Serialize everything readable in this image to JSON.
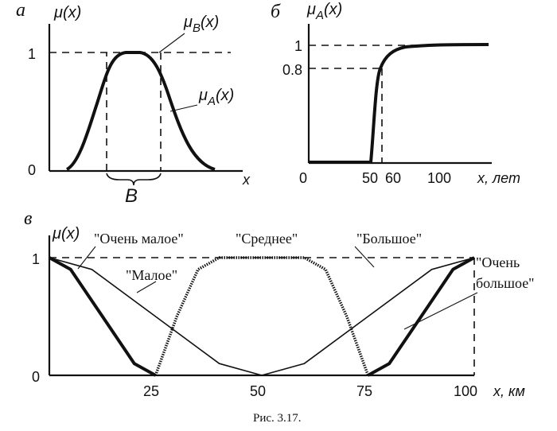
{
  "chart_data": [
    {
      "panel": "а",
      "type": "line",
      "ylabel": "μ(x)",
      "xlabel": "x",
      "y_ticks": [
        "0",
        "1"
      ],
      "ylim": [
        0,
        1
      ],
      "series": [
        {
          "name": "μB(x)",
          "x": [
            0.18,
            0.18,
            0.59,
            0.59
          ],
          "y": [
            0,
            1,
            1,
            0
          ],
          "style": "dashed"
        },
        {
          "name": "μA(x)",
          "x": [
            0.09,
            0.22,
            0.38,
            0.51,
            0.66,
            0.88
          ],
          "y": [
            0,
            0.5,
            1,
            1,
            0.5,
            0
          ],
          "style": "solid"
        }
      ],
      "interval_label": "B",
      "curve_labels": {
        "B": "μB(x)",
        "A": "μA(x)"
      }
    },
    {
      "panel": "б",
      "type": "line",
      "ylabel": "μA(x)",
      "xlabel": "x, лет",
      "x_ticks": [
        {
          "value": 0,
          "label": "0"
        },
        {
          "value": 50,
          "label": "50"
        },
        {
          "value": 60,
          "label": "60"
        },
        {
          "value": 100,
          "label": "100"
        }
      ],
      "y_ticks": [
        {
          "value": 0.8,
          "label": "0.8"
        },
        {
          "value": 1,
          "label": "1"
        }
      ],
      "xlim": [
        0,
        100
      ],
      "ylim": [
        0,
        1
      ],
      "series": [
        {
          "name": "μA(x)",
          "x": [
            0,
            50,
            52,
            54,
            56,
            60,
            70,
            80,
            100
          ],
          "y": [
            0,
            0,
            0.55,
            0.8,
            0.9,
            0.96,
            0.99,
            1,
            1
          ]
        }
      ],
      "guides": {
        "x": 54,
        "y": 0.8
      }
    },
    {
      "panel": "в",
      "type": "line",
      "ylabel": "μ(x)",
      "xlabel": "x, км",
      "x_ticks": [
        {
          "value": 25,
          "label": "25"
        },
        {
          "value": 50,
          "label": "50"
        },
        {
          "value": 75,
          "label": "75"
        },
        {
          "value": 100,
          "label": "100"
        }
      ],
      "y_ticks": [
        {
          "value": 0,
          "label": "0"
        },
        {
          "value": 1,
          "label": "1"
        }
      ],
      "xlim": [
        0,
        100
      ],
      "ylim": [
        0,
        1
      ],
      "series": [
        {
          "name": "\"Очень малое\"",
          "x": [
            0,
            5,
            12.5,
            20,
            25
          ],
          "y": [
            1,
            0.9,
            0.5,
            0.1,
            0
          ],
          "style": "thick"
        },
        {
          "name": "\"Малое\"",
          "x": [
            0,
            10,
            25,
            40,
            50
          ],
          "y": [
            1,
            0.9,
            0.5,
            0.1,
            0
          ],
          "style": "thin"
        },
        {
          "name": "\"Среднее\"",
          "x": [
            25,
            30,
            35,
            40,
            60,
            65,
            70,
            75
          ],
          "y": [
            0,
            0.5,
            0.9,
            1,
            1,
            0.9,
            0.5,
            0
          ],
          "style": "dotted"
        },
        {
          "name": "\"Большое\"",
          "x": [
            50,
            60,
            75,
            90,
            100
          ],
          "y": [
            0,
            0.1,
            0.5,
            0.9,
            1
          ],
          "style": "thin"
        },
        {
          "name": "\"Очень большое\"",
          "x": [
            75,
            80,
            87.5,
            95,
            100
          ],
          "y": [
            0,
            0.1,
            0.5,
            0.9,
            1
          ],
          "style": "thick"
        }
      ],
      "curve_labels": {
        "very_small": "\"Очень малое\"",
        "small": "\"Малое\"",
        "medium": "\"Среднее\"",
        "large": "\"Большое\"",
        "very_large_1": "\"Очень",
        "very_large_2": "большое\""
      }
    }
  ],
  "panels": {
    "a": {
      "letter": "а",
      "ylabel": "μ(x)",
      "xlabel": "x",
      "y1": "1",
      "y0": "0",
      "muB": "μ",
      "muB_sub": "B",
      "muB_arg": "(x)",
      "muA": "μ",
      "muA_sub": "A",
      "muA_arg": "(x)",
      "interval": "B"
    },
    "b": {
      "letter": "б",
      "ylabel_mu": "μ",
      "ylabel_sub": "A",
      "ylabel_arg": "(x)",
      "y1": "1",
      "y08": "0.8",
      "x0": "0",
      "x50": "50",
      "x60": "60",
      "x100": "100",
      "xlabel": "x,  лет"
    },
    "c": {
      "letter": "в",
      "ylabel": "μ(x)",
      "y1": "1",
      "y0": "0",
      "x25": "25",
      "x50": "50",
      "x75": "75",
      "x100": "100",
      "xlabel": "x,  км"
    }
  },
  "caption": "Рис. 3.17."
}
